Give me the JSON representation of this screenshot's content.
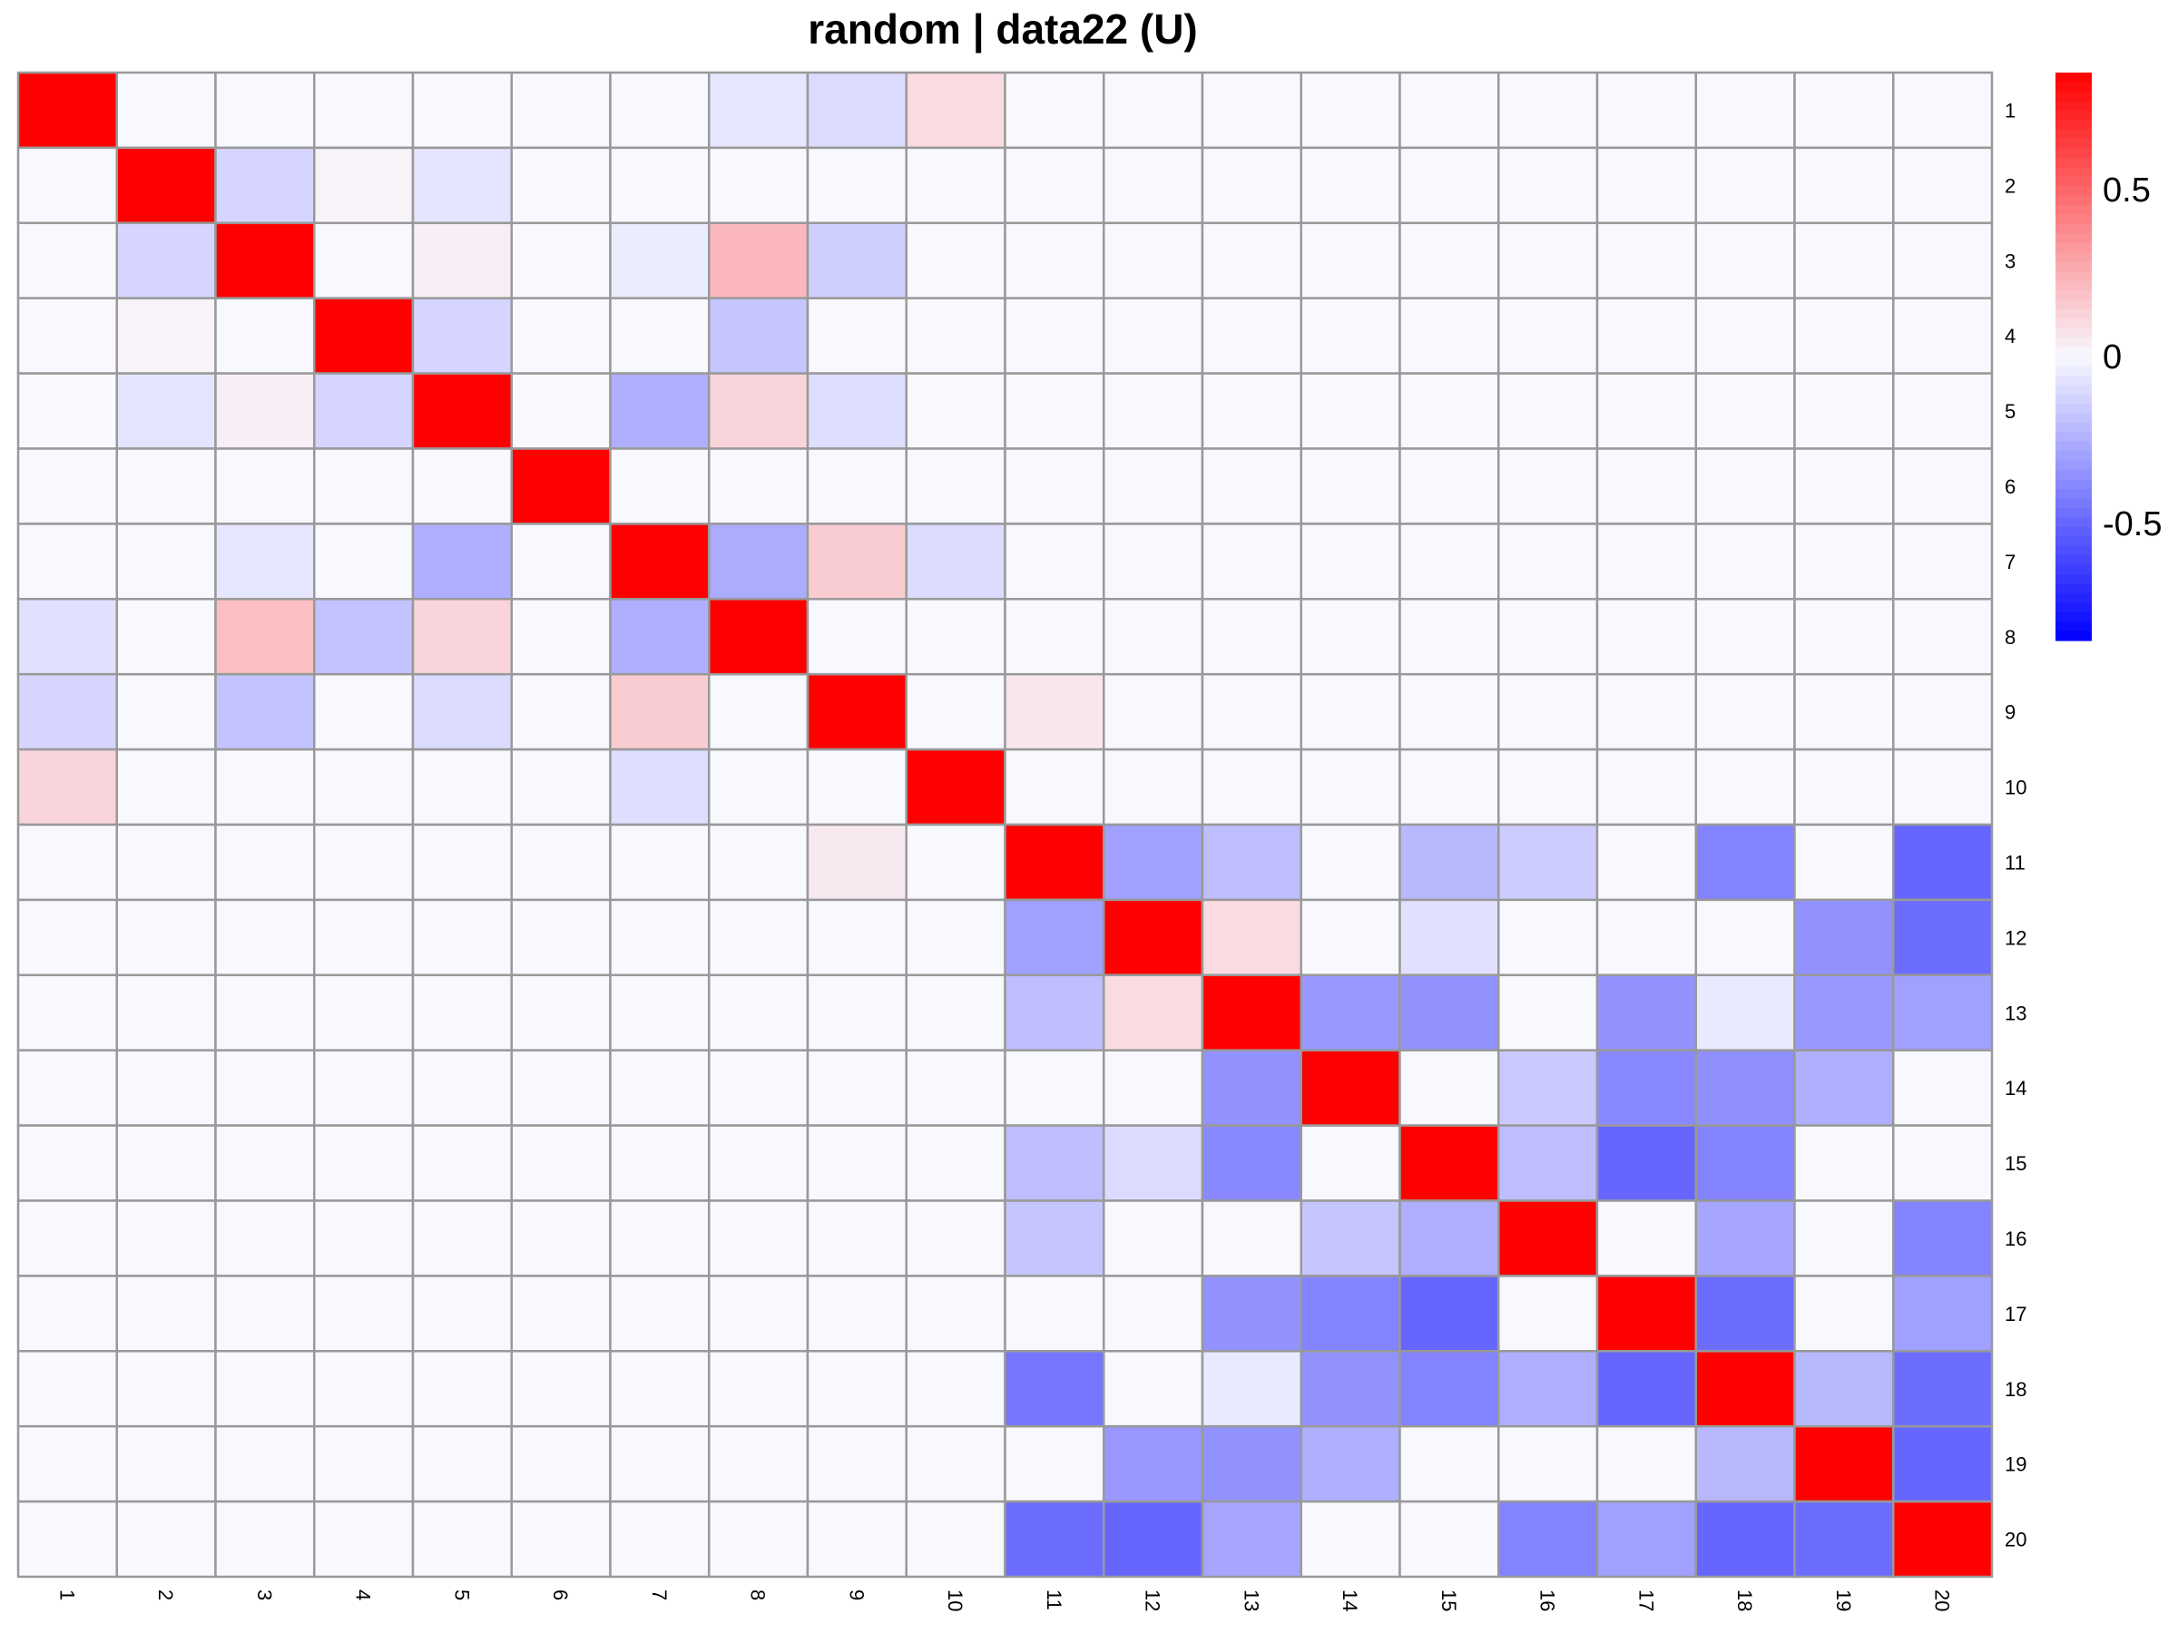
{
  "chart_data": {
    "type": "heatmap",
    "title": "random | data22 (U)",
    "row_labels": [
      "1",
      "2",
      "3",
      "4",
      "5",
      "6",
      "7",
      "8",
      "9",
      "10",
      "11",
      "12",
      "13",
      "14",
      "15",
      "16",
      "17",
      "18",
      "19",
      "20"
    ],
    "col_labels": [
      "1",
      "2",
      "3",
      "4",
      "5",
      "6",
      "7",
      "8",
      "9",
      "10",
      "11",
      "12",
      "13",
      "14",
      "15",
      "16",
      "17",
      "18",
      "19",
      "20"
    ],
    "legend": {
      "position": "right",
      "range": [
        -0.85,
        0.85
      ],
      "ticks": [
        0.5,
        0,
        -0.5
      ],
      "tick_labels": [
        "0.5",
        "0",
        "-0.5"
      ],
      "colors": {
        "low": "#0000ff",
        "mid": "#f8f8ff",
        "high": "#ff0000"
      }
    },
    "grid": true,
    "values": [
      [
        1,
        0,
        0,
        0,
        0,
        0,
        0,
        -0.06,
        -0.1,
        0.1,
        0,
        0,
        0,
        0,
        0,
        0,
        0,
        0,
        0,
        0
      ],
      [
        0,
        1,
        -0.12,
        0.02,
        -0.07,
        0,
        0,
        0,
        0,
        0,
        0,
        0,
        0,
        0,
        0,
        0,
        0,
        0,
        0,
        0
      ],
      [
        0,
        -0.12,
        1,
        0,
        0.03,
        0,
        -0.04,
        0.22,
        -0.14,
        0,
        0,
        0,
        0,
        0,
        0,
        0,
        0,
        0,
        0,
        0
      ],
      [
        0,
        0.02,
        0,
        1,
        -0.12,
        0,
        0,
        -0.17,
        0,
        0,
        0,
        0,
        0,
        0,
        0,
        0,
        0,
        0,
        0,
        0
      ],
      [
        0,
        -0.07,
        0.03,
        -0.12,
        1,
        0,
        -0.25,
        0.12,
        -0.09,
        0,
        0,
        0,
        0,
        0,
        0,
        0,
        0,
        0,
        0,
        0
      ],
      [
        0,
        0,
        0,
        0,
        0,
        1,
        0,
        0,
        0,
        0,
        0,
        0,
        0,
        0,
        0,
        0,
        0,
        0,
        0,
        0
      ],
      [
        0,
        0,
        -0.06,
        0,
        -0.25,
        0,
        1,
        -0.26,
        0.15,
        -0.1,
        0,
        0,
        0,
        0,
        0,
        0,
        0,
        0,
        0,
        0
      ],
      [
        -0.08,
        0,
        0.2,
        -0.18,
        0.12,
        0,
        -0.25,
        1,
        0,
        0,
        0,
        0,
        0,
        0,
        0,
        0,
        0,
        0,
        0,
        0
      ],
      [
        -0.12,
        0,
        -0.18,
        0,
        -0.1,
        0,
        0.15,
        0,
        1,
        0,
        0.06,
        0,
        0,
        0,
        0,
        0,
        0,
        0,
        0,
        0
      ],
      [
        0.12,
        0,
        0,
        0,
        0,
        0,
        -0.09,
        0,
        0,
        1,
        0,
        0,
        0,
        0,
        0,
        0,
        0,
        0,
        0,
        0
      ],
      [
        0,
        0,
        0,
        0,
        0,
        0,
        0,
        0,
        0.05,
        0,
        1,
        -0.3,
        -0.2,
        0,
        -0.22,
        -0.15,
        0,
        -0.4,
        0,
        -0.5
      ],
      [
        0,
        0,
        0,
        0,
        0,
        0,
        0,
        0,
        0,
        0,
        -0.3,
        1,
        0.1,
        0,
        -0.08,
        0,
        0,
        0,
        -0.35,
        -0.48
      ],
      [
        0,
        0,
        0,
        0,
        0,
        0,
        0,
        0,
        0,
        0,
        -0.2,
        0.1,
        1,
        -0.33,
        -0.35,
        0,
        -0.35,
        -0.05,
        -0.33,
        -0.3
      ],
      [
        0,
        0,
        0,
        0,
        0,
        0,
        0,
        0,
        0,
        0,
        0,
        0,
        -0.35,
        1,
        0,
        -0.16,
        -0.38,
        -0.36,
        -0.25,
        0
      ],
      [
        0,
        0,
        0,
        0,
        0,
        0,
        0,
        0,
        0,
        0,
        -0.2,
        -0.1,
        -0.38,
        0,
        1,
        -0.2,
        -0.5,
        -0.4,
        0,
        0
      ],
      [
        0,
        0,
        0,
        0,
        0,
        0,
        0,
        0,
        0,
        0,
        -0.17,
        0,
        0,
        -0.17,
        -0.25,
        1,
        0,
        -0.28,
        0,
        -0.4
      ],
      [
        0,
        0,
        0,
        0,
        0,
        0,
        0,
        0,
        0,
        0,
        0,
        0,
        -0.35,
        -0.4,
        -0.5,
        0,
        1,
        -0.48,
        0,
        -0.3
      ],
      [
        0,
        0,
        0,
        0,
        0,
        0,
        0,
        0,
        0,
        0,
        -0.45,
        0,
        -0.05,
        -0.35,
        -0.4,
        -0.25,
        -0.5,
        1,
        -0.22,
        -0.48
      ],
      [
        0,
        0,
        0,
        0,
        0,
        0,
        0,
        0,
        0,
        0,
        0,
        -0.33,
        -0.35,
        -0.25,
        0,
        0,
        0,
        -0.22,
        1,
        -0.5
      ],
      [
        0,
        0,
        0,
        0,
        0,
        0,
        0,
        0,
        0,
        0,
        -0.48,
        -0.5,
        -0.28,
        0,
        0,
        -0.4,
        -0.3,
        -0.5,
        -0.48,
        1
      ]
    ]
  }
}
